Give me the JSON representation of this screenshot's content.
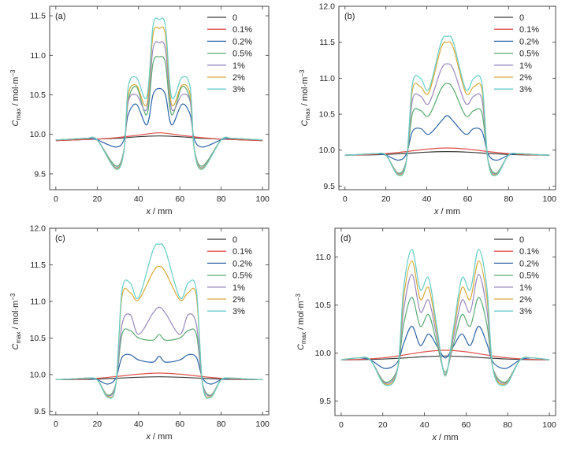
{
  "legend_labels": [
    "0",
    "0.1%",
    "0.2%",
    "0.5%",
    "1%",
    "2%",
    "3%"
  ],
  "series_colors": [
    "#3a3a3a",
    "#e0524c",
    "#2e64a8",
    "#5aaa72",
    "#9a88bf",
    "#d7a93a",
    "#66cdc8"
  ],
  "axis_text": {
    "x_italic": "x",
    "x_unit": " / mm",
    "y_main": "C",
    "y_sub": "max",
    "y_unit": " / mol·m",
    "y_sup": "−3"
  },
  "chart_data": [
    {
      "type": "line",
      "panel": "(a)",
      "xlim": [
        -3,
        103
      ],
      "ylim": [
        9.3,
        11.62
      ],
      "x_ticks": [
        0,
        20,
        40,
        60,
        80,
        100
      ],
      "y_ticks": [
        9.5,
        10.0,
        10.5,
        11.0,
        11.5
      ],
      "y_tick_labels": [
        "9.5",
        "10.0",
        "10.5",
        "11.0",
        "11.5"
      ],
      "legend_position": "top-right",
      "baseline": [
        [
          0,
          9.93
        ],
        [
          10,
          9.93
        ],
        [
          20,
          9.94
        ],
        [
          30,
          9.96
        ],
        [
          40,
          9.98
        ],
        [
          50,
          10.0
        ],
        [
          60,
          9.98
        ],
        [
          70,
          9.96
        ],
        [
          80,
          9.94
        ],
        [
          90,
          9.93
        ],
        [
          100,
          9.93
        ]
      ],
      "series": [
        {
          "name": "0",
          "x": [
            0,
            20,
            30,
            40,
            50,
            60,
            70,
            80,
            100
          ],
          "y": [
            9.92,
            9.94,
            9.95,
            9.97,
            9.98,
            9.97,
            9.95,
            9.94,
            9.92
          ]
        },
        {
          "name": "0.1%",
          "x": [
            0,
            20,
            30,
            40,
            50,
            60,
            70,
            80,
            100
          ],
          "y": [
            9.92,
            9.94,
            9.96,
            9.99,
            10.02,
            9.99,
            9.96,
            9.94,
            9.92
          ]
        },
        {
          "name": "0.2%",
          "peak": 10.58,
          "side_peaks": 10.38,
          "valleys": 10.12,
          "dip": 9.84
        },
        {
          "name": "0.5%",
          "peak": 10.98,
          "side_peaks": 10.6,
          "valleys": 10.25,
          "dip": 9.6
        },
        {
          "name": "1%",
          "peak": 11.16,
          "side_peaks": 10.5,
          "valleys": 10.32,
          "dip": 9.58
        },
        {
          "name": "2%",
          "peak": 11.34,
          "side_peaks": 10.62,
          "valleys": 10.38,
          "dip": 9.57
        },
        {
          "name": "3%",
          "peak": 11.45,
          "side_peaks": 10.72,
          "valleys": 10.47,
          "dip": 9.56
        }
      ],
      "profile_x": {
        "dip": 29,
        "side_left": 39,
        "valley_left": 44,
        "peak": 50,
        "valley_right": 56,
        "side_right": 61,
        "dip_right": 71
      }
    },
    {
      "type": "line",
      "panel": "(b)",
      "xlim": [
        -3,
        103
      ],
      "ylim": [
        9.45,
        12.0
      ],
      "x_ticks": [
        0,
        20,
        40,
        60,
        80,
        100
      ],
      "y_ticks": [
        9.5,
        10.0,
        10.5,
        11.0,
        11.5,
        12.0
      ],
      "y_tick_labels": [
        "9.5",
        "10.0",
        "10.5",
        "11.0",
        "11.5",
        "12.0"
      ],
      "legend_position": "top-right",
      "series": [
        {
          "name": "0",
          "peak": 9.98
        },
        {
          "name": "0.1%",
          "peak": 10.03
        },
        {
          "name": "0.2%",
          "peak": 10.48,
          "side_peaks": 10.3,
          "valleys": 10.22,
          "dip": 9.86
        },
        {
          "name": "0.5%",
          "peak": 10.93,
          "side_peaks": 10.55,
          "valleys": 10.48,
          "dip": 9.68
        },
        {
          "name": "1%",
          "peak": 11.2,
          "side_peaks": 10.75,
          "valleys": 10.65,
          "dip": 9.67
        },
        {
          "name": "2%",
          "peak": 11.5,
          "side_peaks": 10.88,
          "valleys": 10.8,
          "dip": 9.66
        },
        {
          "name": "3%",
          "peak": 11.58,
          "side_peaks": 11.0,
          "valleys": 10.85,
          "dip": 9.65
        }
      ],
      "profile_x": {
        "dip": 26,
        "side_left": 37,
        "valley_left": 41,
        "peak": 50,
        "valley_right": 59,
        "side_right": 63,
        "dip_right": 74
      }
    },
    {
      "type": "line",
      "panel": "(c)",
      "xlim": [
        -3,
        103
      ],
      "ylim": [
        9.45,
        12.0
      ],
      "x_ticks": [
        0,
        20,
        40,
        60,
        80,
        100
      ],
      "y_ticks": [
        9.5,
        10.0,
        10.5,
        11.0,
        11.5,
        12.0
      ],
      "y_tick_labels": [
        "9.5",
        "10.0",
        "10.5",
        "11.0",
        "11.5",
        "12.0"
      ],
      "legend_position": "top-right",
      "series": [
        {
          "name": "0",
          "peak": 9.97
        },
        {
          "name": "0.1%",
          "peak": 10.02
        },
        {
          "name": "0.2%",
          "peak": 10.25,
          "side_peaks": 10.27,
          "valleys": 10.2,
          "dip": 9.87
        },
        {
          "name": "0.5%",
          "peak": 10.55,
          "side_peaks": 10.6,
          "valleys": 10.5,
          "dip": 9.72
        },
        {
          "name": "1%",
          "peak": 10.92,
          "side_peaks": 10.82,
          "valleys": 10.55,
          "dip": 9.71
        },
        {
          "name": "2%",
          "peak": 11.48,
          "side_peaks": 11.12,
          "valleys": 11.02,
          "dip": 9.7
        },
        {
          "name": "3%",
          "peak": 11.78,
          "side_peaks": 11.25,
          "valleys": 11.05,
          "dip": 9.69
        }
      ],
      "profile_x": {
        "dip": 25,
        "side_left": 36,
        "valley_left": 40,
        "peak": 50,
        "valley_right": 60,
        "side_right": 64,
        "dip_right": 75
      }
    },
    {
      "type": "line",
      "panel": "(d)",
      "xlim": [
        -3,
        103
      ],
      "ylim": [
        9.35,
        11.3
      ],
      "x_ticks": [
        0,
        20,
        40,
        60,
        80,
        100
      ],
      "y_ticks": [
        9.5,
        10.0,
        10.5,
        11.0
      ],
      "y_tick_labels": [
        "9.5",
        "10.0",
        "10.5",
        "11.0"
      ],
      "legend_position": "top-right",
      "series": [
        {
          "name": "0",
          "peak": 9.97
        },
        {
          "name": "0.1%",
          "peak": 10.03
        },
        {
          "name": "0.2%",
          "peak": 10.28,
          "side_peaks": 10.2,
          "center": 9.95,
          "dip": 9.84
        },
        {
          "name": "0.5%",
          "peak": 10.58,
          "side_peaks": 10.4,
          "center": 9.8,
          "dip": 9.7
        },
        {
          "name": "1%",
          "peak": 10.82,
          "side_peaks": 10.55,
          "center": 9.78,
          "dip": 9.69
        },
        {
          "name": "2%",
          "peak": 10.96,
          "side_peaks": 10.68,
          "center": 9.77,
          "dip": 9.68
        },
        {
          "name": "3%",
          "peak": 11.08,
          "side_peaks": 10.78,
          "center": 9.76,
          "dip": 9.67
        }
      ],
      "profile_x": {
        "dip": 21,
        "peak_left": 34,
        "valley_left": 38,
        "side_left": 42,
        "center": 50,
        "side_right": 58,
        "valley_right": 62,
        "peak_right": 66,
        "dip_right": 79
      }
    }
  ]
}
